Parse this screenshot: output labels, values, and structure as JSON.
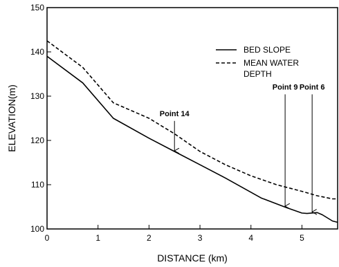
{
  "chart_data": {
    "type": "line",
    "xlabel": "DISTANCE (km)",
    "ylabel": "ELEVATION(m)",
    "xlim": [
      0,
      5.7
    ],
    "ylim": [
      100,
      150
    ],
    "xticks": [
      0,
      1,
      2,
      3,
      4,
      5
    ],
    "yticks": [
      100,
      110,
      120,
      130,
      140,
      150
    ],
    "grid": false,
    "legend_position": "top-right",
    "series": [
      {
        "name": "BED SLOPE",
        "style": "solid",
        "color": "#000000",
        "x": [
          0,
          0.7,
          1.3,
          2.0,
          2.5,
          3.0,
          3.5,
          4.2,
          4.7,
          5.0,
          5.1,
          5.3,
          5.4,
          5.6,
          5.7
        ],
        "y": [
          139,
          133,
          125,
          120.5,
          117.5,
          114.5,
          111.5,
          107,
          104.8,
          103.6,
          103.5,
          103.7,
          103.2,
          101.8,
          101.5
        ]
      },
      {
        "name": "MEAN WATER DEPTH",
        "style": "dashed",
        "color": "#000000",
        "x": [
          0,
          0.7,
          1.3,
          2.0,
          2.5,
          3.0,
          3.5,
          4.0,
          4.5,
          5.0,
          5.3,
          5.6,
          5.7
        ],
        "y": [
          142.5,
          136.5,
          128.5,
          125,
          121.5,
          117.5,
          114.5,
          112,
          110,
          108.5,
          107.5,
          106.8,
          106.8
        ]
      }
    ],
    "legend": [
      "BED SLOPE",
      "MEAN WATER",
      "DEPTH"
    ],
    "annotations": [
      {
        "label": "Point 14",
        "x": 2.5,
        "y_text": 125.5,
        "y_arrow": 117.5
      },
      {
        "label": "Point 9",
        "x": 4.67,
        "y_text": 131.5,
        "y_arrow": 105.0
      },
      {
        "label": "Point 6",
        "x": 5.2,
        "y_text": 131.5,
        "y_arrow": 103.7
      }
    ]
  }
}
